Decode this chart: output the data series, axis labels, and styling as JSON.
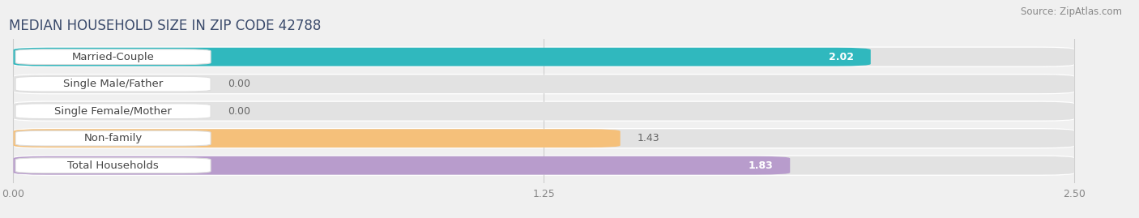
{
  "title": "MEDIAN HOUSEHOLD SIZE IN ZIP CODE 42788",
  "source": "Source: ZipAtlas.com",
  "categories": [
    "Married-Couple",
    "Single Male/Father",
    "Single Female/Mother",
    "Non-family",
    "Total Households"
  ],
  "values": [
    2.02,
    0.0,
    0.0,
    1.43,
    1.83
  ],
  "bar_colors": [
    "#30b8be",
    "#a8c4e8",
    "#f4a0b8",
    "#f5c07a",
    "#b89ccc"
  ],
  "label_bg_color": "#ffffff",
  "bg_color": "#f0f0f0",
  "bar_bg_color": "#e2e2e2",
  "row_bg_color": "#f8f8f8",
  "xlim_max": 2.5,
  "xticks": [
    0.0,
    1.25,
    2.5
  ],
  "xtick_labels": [
    "0.00",
    "1.25",
    "2.50"
  ],
  "title_fontsize": 12,
  "label_fontsize": 9.5,
  "value_fontsize": 9,
  "source_fontsize": 8.5,
  "title_color": "#3a4a6b",
  "source_color": "#888888",
  "value_color_inside": "#ffffff",
  "value_color_outside": "#666666",
  "label_text_color": "#444444"
}
